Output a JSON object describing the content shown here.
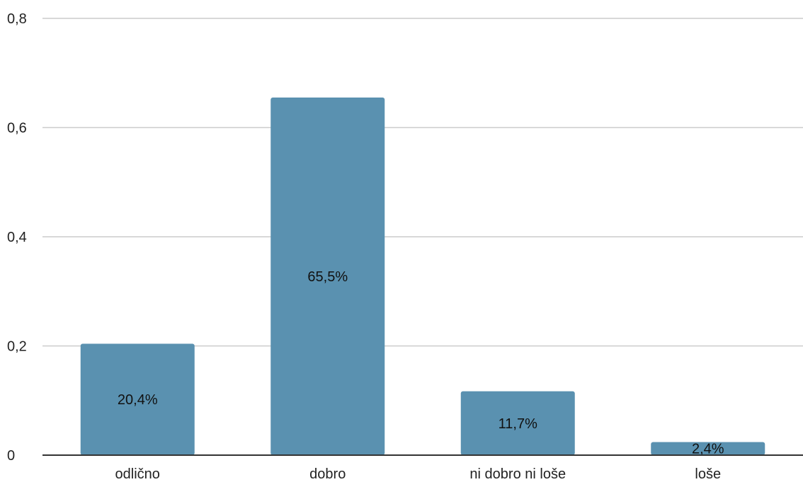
{
  "chart_data": {
    "type": "bar",
    "title": "",
    "xlabel": "",
    "ylabel": "",
    "categories": [
      "odlično",
      "dobro",
      "ni dobro ni loše",
      "loše"
    ],
    "values": [
      0.204,
      0.655,
      0.117,
      0.024
    ],
    "data_labels": [
      "20,4%",
      "65,5%",
      "11,7%",
      "2,4%"
    ],
    "ylim": [
      0,
      0.8
    ],
    "y_ticks": [
      0,
      0.2,
      0.4,
      0.6,
      0.8
    ],
    "y_tick_labels": [
      "0",
      "0,2",
      "0,4",
      "0,6",
      "0,8"
    ],
    "grid": true,
    "legend": "none",
    "colors": {
      "bar": "#5a91b0",
      "grid": "#cccccc",
      "axis": "#333333"
    }
  }
}
